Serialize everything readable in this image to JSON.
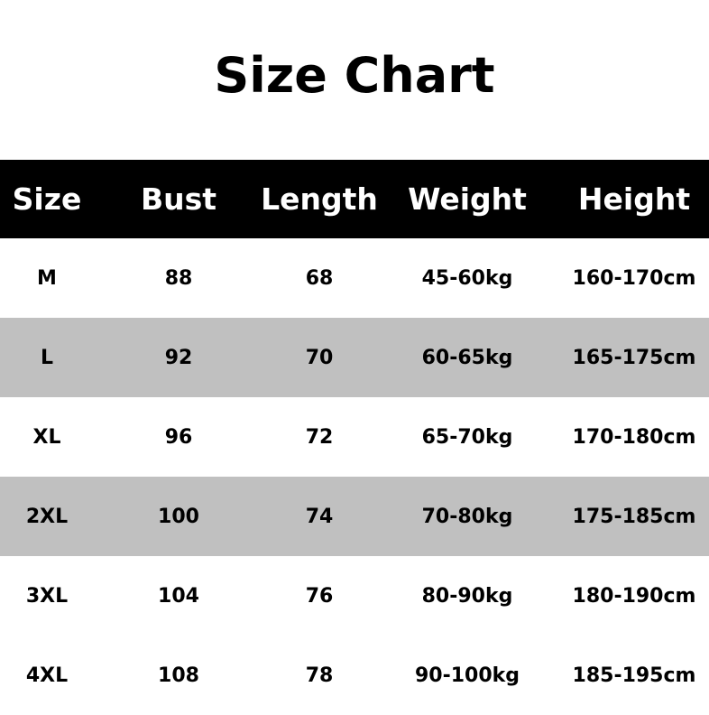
{
  "title": "Size Chart",
  "colors": {
    "header_bg": "#000000",
    "header_text": "#ffffff",
    "stripe": "#c0c0c0",
    "row_bg": "#ffffff"
  },
  "table": {
    "headers": [
      "Size",
      "Bust",
      "Length",
      "Weight",
      "Height"
    ],
    "rows": [
      [
        "M",
        "88",
        "68",
        "45-60kg",
        "160-170cm"
      ],
      [
        "L",
        "92",
        "70",
        "60-65kg",
        "165-175cm"
      ],
      [
        "XL",
        "96",
        "72",
        "65-70kg",
        "170-180cm"
      ],
      [
        "2XL",
        "100",
        "74",
        "70-80kg",
        "175-185cm"
      ],
      [
        "3XL",
        "104",
        "76",
        "80-90kg",
        "180-190cm"
      ],
      [
        "4XL",
        "108",
        "78",
        "90-100kg",
        "185-195cm"
      ]
    ],
    "striped_rows": [
      1,
      3
    ]
  }
}
